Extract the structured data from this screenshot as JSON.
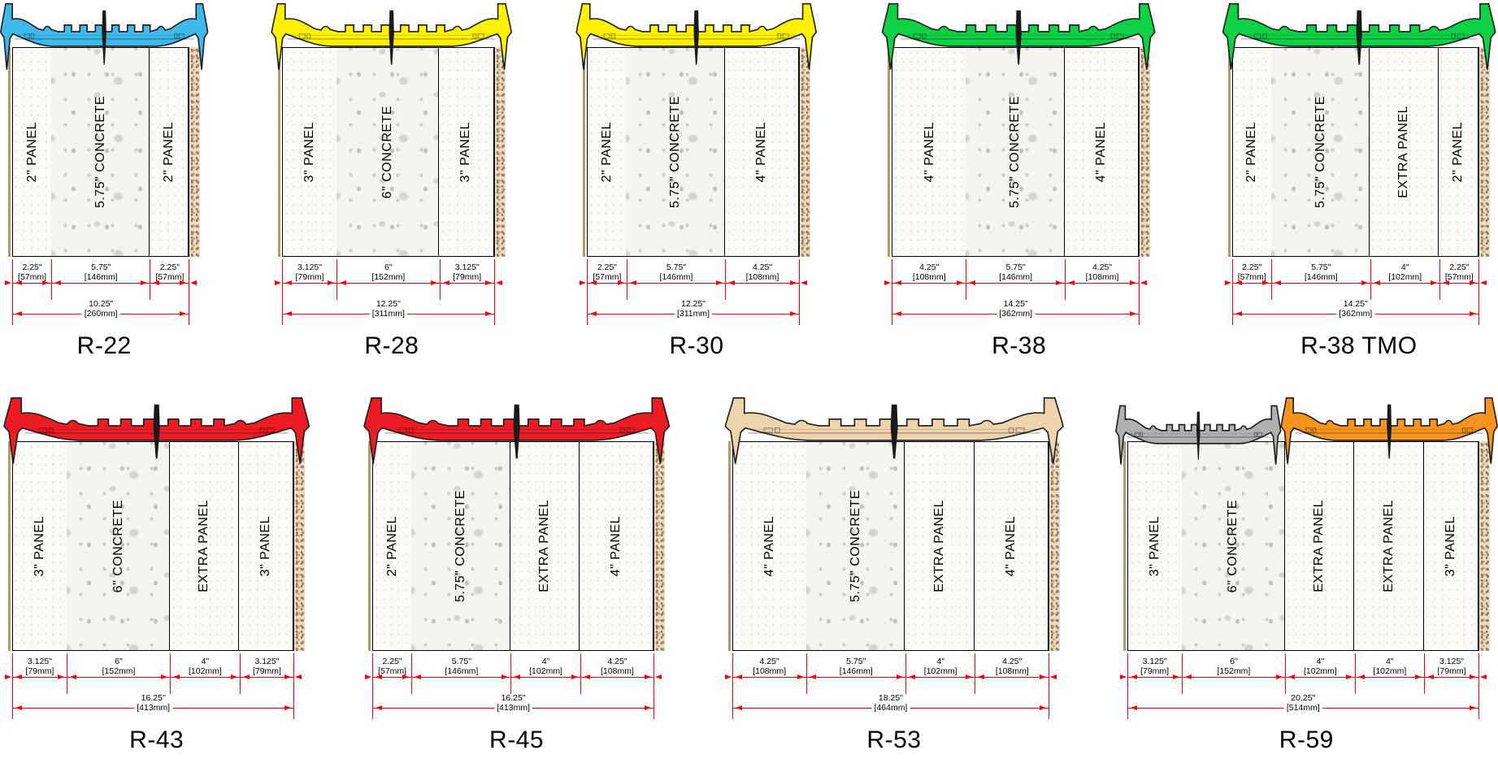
{
  "page": {
    "background": "#FFFFFF",
    "dimension_line_color": "#FF0000",
    "text_color": "#000000"
  },
  "rows": [
    {
      "diagrams": [
        {
          "title": "R-22",
          "tie_colors": [
            "#3FB9EA"
          ],
          "total_inches": 10.25,
          "total": {
            "label": "10.25\"",
            "mm": "[260mm]"
          },
          "segments": [
            {
              "panel": "2\" PANEL",
              "type": "foam",
              "inches": 2.25,
              "dim": "2.25\"",
              "mm": "[57mm]"
            },
            {
              "panel": "5.75\" CONCRETE",
              "type": "concrete",
              "inches": 5.75,
              "dim": "5.75\"",
              "mm": "[146mm]"
            },
            {
              "panel": "2\" PANEL",
              "type": "foam",
              "inches": 2.25,
              "dim": "2.25\"",
              "mm": "[57mm]"
            }
          ]
        },
        {
          "title": "R-28",
          "tie_colors": [
            "#FFF200"
          ],
          "total_inches": 12.25,
          "total": {
            "label": "12.25\"",
            "mm": "[311mm]"
          },
          "segments": [
            {
              "panel": "3\" PANEL",
              "type": "foam",
              "inches": 3.125,
              "dim": "3.125\"",
              "mm": "[79mm]"
            },
            {
              "panel": "6\" CONCRETE",
              "type": "concrete",
              "inches": 6,
              "dim": "6\"",
              "mm": "[152mm]"
            },
            {
              "panel": "3\" PANEL",
              "type": "foam",
              "inches": 3.125,
              "dim": "3.125\"",
              "mm": "[79mm]"
            }
          ]
        },
        {
          "title": "R-30",
          "tie_colors": [
            "#FFF200"
          ],
          "total_inches": 12.25,
          "total": {
            "label": "12.25\"",
            "mm": "[311mm]"
          },
          "segments": [
            {
              "panel": "2\" PANEL",
              "type": "foam",
              "inches": 2.25,
              "dim": "2.25\"",
              "mm": "[57mm]"
            },
            {
              "panel": "5.75\" CONCRETE",
              "type": "concrete",
              "inches": 5.75,
              "dim": "5.75\"",
              "mm": "[146mm]"
            },
            {
              "panel": "4\" PANEL",
              "type": "foam",
              "inches": 4.25,
              "dim": "4.25\"",
              "mm": "[108mm]"
            }
          ]
        },
        {
          "title": "R-38",
          "tie_colors": [
            "#0ED145"
          ],
          "total_inches": 14.25,
          "total": {
            "label": "14.25\"",
            "mm": "[362mm]"
          },
          "segments": [
            {
              "panel": "4\" PANEL",
              "type": "foam",
              "inches": 4.25,
              "dim": "4.25\"",
              "mm": "[108mm]"
            },
            {
              "panel": "5.75\" CONCRETE",
              "type": "concrete",
              "inches": 5.75,
              "dim": "5.75\"",
              "mm": "[146mm]"
            },
            {
              "panel": "4\" PANEL",
              "type": "foam",
              "inches": 4.25,
              "dim": "4.25\"",
              "mm": "[108mm]"
            }
          ]
        },
        {
          "title": "R-38 TMO",
          "tie_colors": [
            "#0ED145"
          ],
          "total_inches": 14.25,
          "total": {
            "label": "14.25\"",
            "mm": "[362mm]"
          },
          "segments": [
            {
              "panel": "2\" PANEL",
              "type": "foam",
              "inches": 2.25,
              "dim": "2.25\"",
              "mm": "[57mm]"
            },
            {
              "panel": "5.75\" CONCRETE",
              "type": "concrete",
              "inches": 5.75,
              "dim": "5.75\"",
              "mm": "[146mm]"
            },
            {
              "panel": "EXTRA PANEL",
              "type": "extra",
              "inches": 4,
              "dim": "4\"",
              "mm": "[102mm]"
            },
            {
              "panel": "2\" PANEL",
              "type": "foam",
              "inches": 2.25,
              "dim": "2.25\"",
              "mm": "[57mm]"
            }
          ]
        }
      ]
    },
    {
      "diagrams": [
        {
          "title": "R-43",
          "tie_colors": [
            "#EC1C24"
          ],
          "total_inches": 16.25,
          "total": {
            "label": "16.25\"",
            "mm": "[413mm]"
          },
          "segments": [
            {
              "panel": "3\" PANEL",
              "type": "foam",
              "inches": 3.125,
              "dim": "3.125\"",
              "mm": "[79mm]"
            },
            {
              "panel": "6\" CONCRETE",
              "type": "concrete",
              "inches": 6,
              "dim": "6\"",
              "mm": "[152mm]"
            },
            {
              "panel": "EXTRA PANEL",
              "type": "extra",
              "inches": 4,
              "dim": "4\"",
              "mm": "[102mm]"
            },
            {
              "panel": "3\" PANEL",
              "type": "foam",
              "inches": 3.125,
              "dim": "3.125\"",
              "mm": "[79mm]"
            }
          ]
        },
        {
          "title": "R-45",
          "tie_colors": [
            "#EC1C24"
          ],
          "total_inches": 16.25,
          "total": {
            "label": "16.25\"",
            "mm": "[413mm]"
          },
          "segments": [
            {
              "panel": "2\" PANEL",
              "type": "foam",
              "inches": 2.25,
              "dim": "2.25\"",
              "mm": "[57mm]"
            },
            {
              "panel": "5.75\" CONCRETE",
              "type": "concrete",
              "inches": 5.75,
              "dim": "5.75\"",
              "mm": "[146mm]"
            },
            {
              "panel": "EXTRA PANEL",
              "type": "extra",
              "inches": 4,
              "dim": "4\"",
              "mm": "[102mm]"
            },
            {
              "panel": "4\" PANEL",
              "type": "foam",
              "inches": 4.25,
              "dim": "4.25\"",
              "mm": "[108mm]"
            }
          ]
        },
        {
          "title": "R-53",
          "tie_colors": [
            "#EFD3AD"
          ],
          "total_inches": 18.25,
          "total": {
            "label": "18.25\"",
            "mm": "[464mm]"
          },
          "segments": [
            {
              "panel": "4\" PANEL",
              "type": "foam",
              "inches": 4.25,
              "dim": "4.25\"",
              "mm": "[108mm]"
            },
            {
              "panel": "5.75\" CONCRETE",
              "type": "concrete",
              "inches": 5.75,
              "dim": "5.75\"",
              "mm": "[146mm]"
            },
            {
              "panel": "EXTRA PANEL",
              "type": "extra",
              "inches": 4,
              "dim": "4\"",
              "mm": "[102mm]"
            },
            {
              "panel": "4\" PANEL",
              "type": "foam",
              "inches": 4.25,
              "dim": "4.25\"",
              "mm": "[108mm]"
            }
          ]
        },
        {
          "title": "R-59",
          "tie_colors": [
            "#B0B0B0",
            "#F7941D"
          ],
          "total_inches": 20.25,
          "total": {
            "label": "20.25\"",
            "mm": "[514mm]"
          },
          "segments": [
            {
              "panel": "3\" PANEL",
              "type": "foam",
              "inches": 3.125,
              "dim": "3.125\"",
              "mm": "[79mm]"
            },
            {
              "panel": "6\" CONCRETE",
              "type": "concrete",
              "inches": 6,
              "dim": "6\"",
              "mm": "[152mm]"
            },
            {
              "panel": "EXTRA PANEL",
              "type": "extra",
              "inches": 4,
              "dim": "4\"",
              "mm": "[102mm]"
            },
            {
              "panel": "EXTRA PANEL",
              "type": "extra",
              "inches": 4,
              "dim": "4\"",
              "mm": "[102mm]"
            },
            {
              "panel": "3\" PANEL",
              "type": "foam",
              "inches": 3.125,
              "dim": "3.125\"",
              "mm": "[79mm]"
            }
          ]
        }
      ]
    }
  ]
}
